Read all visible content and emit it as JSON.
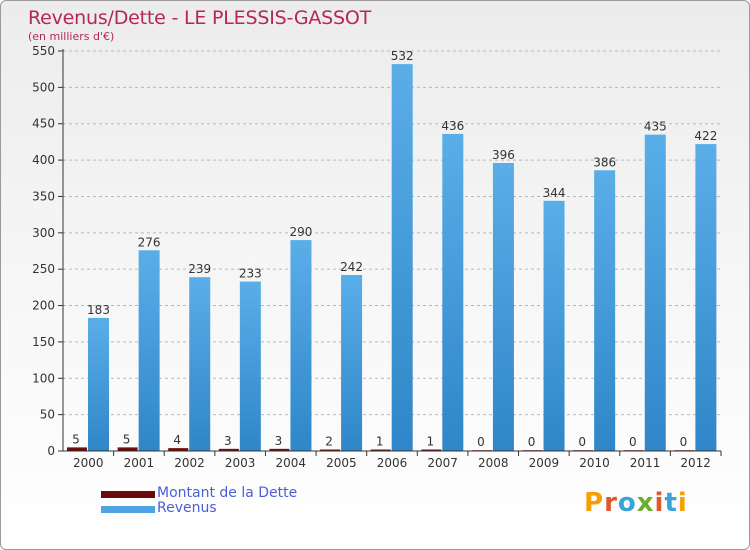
{
  "header": {
    "title": "Revenus/Dette - LE PLESSIS-GASSOT",
    "subtitle": "(en milliers d'€)"
  },
  "legend": {
    "items": [
      {
        "label": "Montant de la Dette",
        "color": "#6b0a0a"
      },
      {
        "label": "Revenus",
        "color": "#4da3e3"
      }
    ]
  },
  "logo": {
    "text": "Proxiti",
    "colors": [
      "#f5a000",
      "#e2562b",
      "#3aa4d8",
      "#6aae2e",
      "#e2562b",
      "#3aa4d8",
      "#f5a000"
    ]
  },
  "chart_data": {
    "type": "bar",
    "title": "Revenus/Dette - LE PLESSIS-GASSOT",
    "ylabel": "(en milliers d'€)",
    "ylim": [
      0,
      550
    ],
    "ytick_step": 50,
    "categories": [
      "2000",
      "2001",
      "2002",
      "2003",
      "2004",
      "2005",
      "2006",
      "2007",
      "2008",
      "2009",
      "2010",
      "2011",
      "2012"
    ],
    "series": [
      {
        "name": "Montant de la Dette",
        "color": "#6b0a0a",
        "values": [
          5,
          5,
          4,
          3,
          3,
          2,
          1,
          1,
          0,
          0,
          0,
          0,
          0
        ]
      },
      {
        "name": "Revenus",
        "color": "#4da3e3",
        "values": [
          183,
          276,
          239,
          233,
          290,
          242,
          532,
          436,
          396,
          344,
          386,
          435,
          422
        ]
      }
    ],
    "grid": "horizontal dashed",
    "legend": "bottom-left"
  }
}
